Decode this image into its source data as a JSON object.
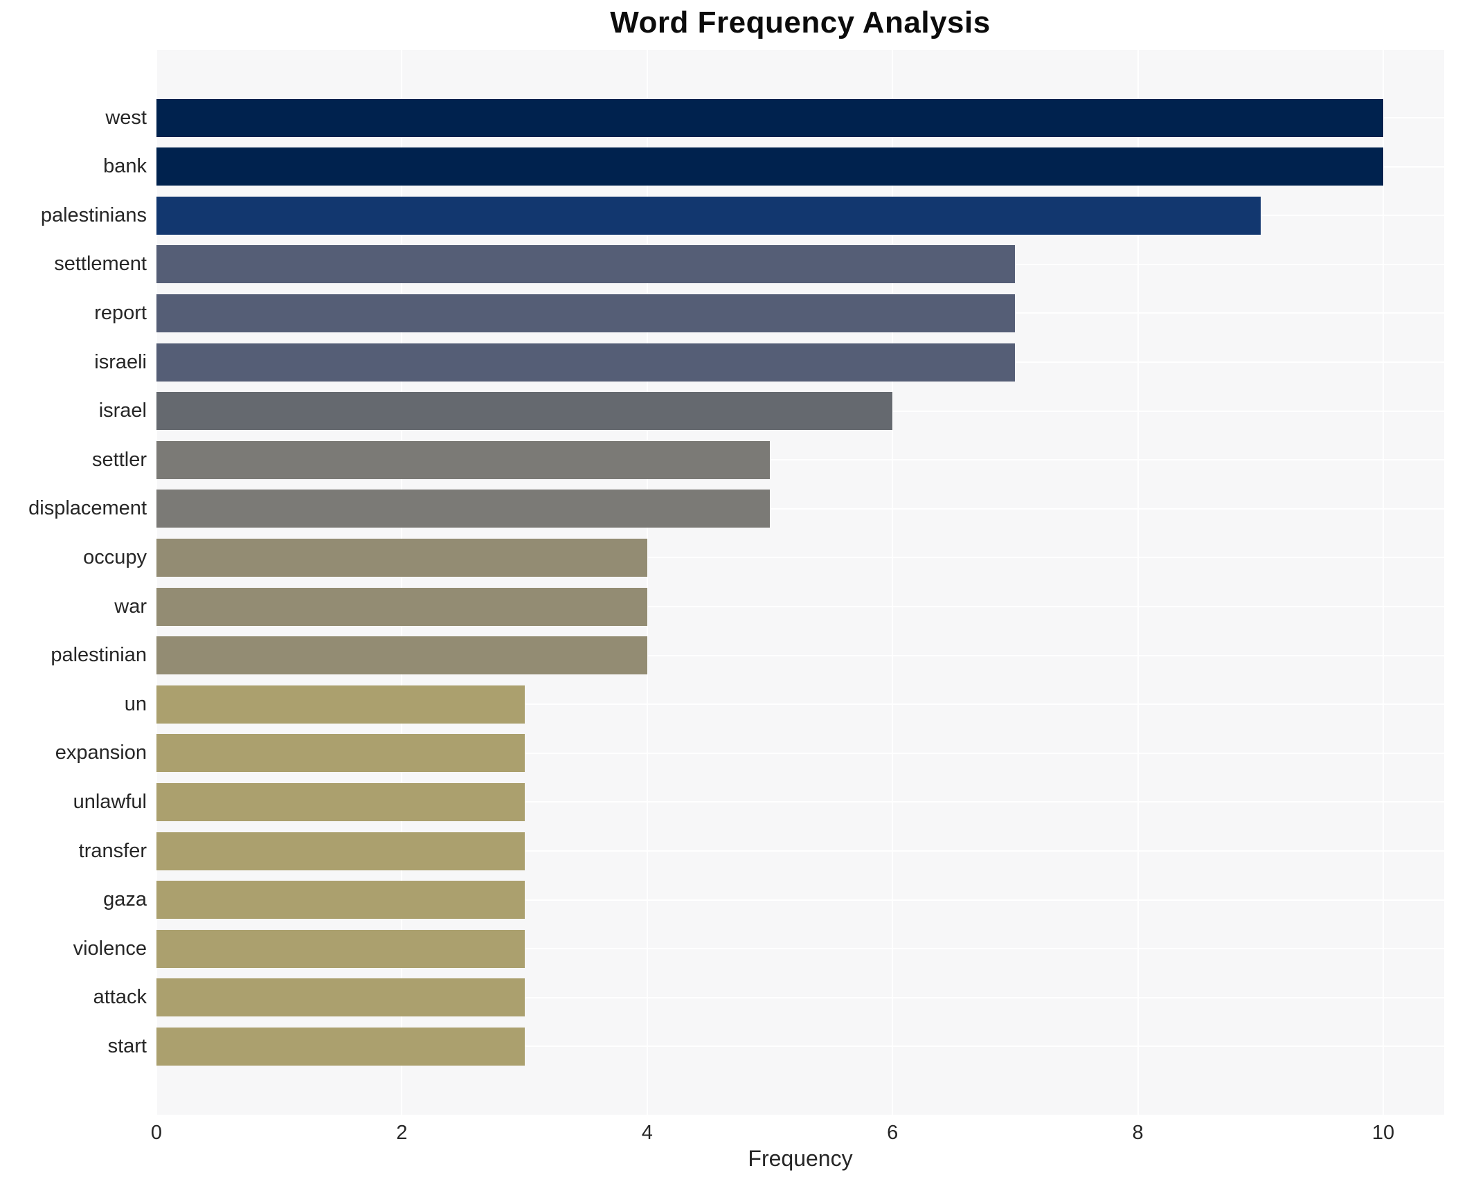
{
  "chart_data": {
    "type": "bar",
    "orientation": "horizontal",
    "title": "Word Frequency Analysis",
    "xlabel": "Frequency",
    "ylabel": "",
    "xlim": [
      0,
      10.5
    ],
    "x_ticks": [
      0,
      2,
      4,
      6,
      8,
      10
    ],
    "grid": true,
    "legend": false,
    "categories": [
      "west",
      "bank",
      "palestinians",
      "settlement",
      "report",
      "israeli",
      "israel",
      "settler",
      "displacement",
      "occupy",
      "war",
      "palestinian",
      "un",
      "expansion",
      "unlawful",
      "transfer",
      "gaza",
      "violence",
      "attack",
      "start"
    ],
    "values": [
      10,
      10,
      9,
      7,
      7,
      7,
      6,
      5,
      5,
      4,
      4,
      4,
      3,
      3,
      3,
      3,
      3,
      3,
      3,
      3
    ],
    "bar_colors": [
      "#00224e",
      "#00224e",
      "#12376f",
      "#555e76",
      "#555e76",
      "#555e76",
      "#65696f",
      "#7b7a76",
      "#7b7a76",
      "#938c73",
      "#938c73",
      "#938c73",
      "#aba06e",
      "#aba06e",
      "#aba06e",
      "#aba06e",
      "#aba06e",
      "#aba06e",
      "#aba06e",
      "#aba06e"
    ]
  },
  "colors": {
    "plot_background": "#f7f7f8",
    "gridline": "#ffffff",
    "text": "#262626",
    "title_text": "#0c0c0c"
  }
}
